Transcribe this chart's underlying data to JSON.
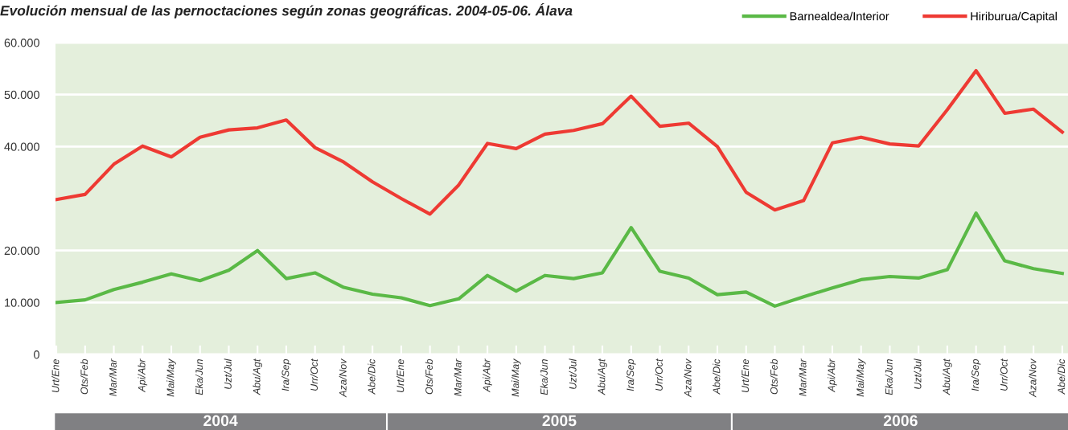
{
  "chart_data": {
    "type": "line",
    "title": "Evolución mensual de las pernoctaciones según zonas geográficas. 2004-05-06. Álava",
    "categories": [
      "Urt/Ene",
      "Ots/Feb",
      "Mar/Mar",
      "Api/Abr",
      "Mai/May",
      "Eka/Jun",
      "Uzt/Jul",
      "Abu/Agt",
      "Ira/Sep",
      "Urr/Oct",
      "Aza/Nov",
      "Abe/Dic",
      "Urt/Ene",
      "Ots/Feb",
      "Mar/Mar",
      "Api/Abr",
      "Mai/May",
      "Eka/Jun",
      "Uzt/Jul",
      "Abu/Agt",
      "Ira/Sep",
      "Urr/Oct",
      "Aza/Nov",
      "Abe/Dic",
      "Urt/Ene",
      "Ots/Feb",
      "Mar/Mar",
      "Api/Abr",
      "Mai/May",
      "Eka/Jun",
      "Uzt/Jul",
      "Abu/Agt",
      "Ira/Sep",
      "Urr/Oct",
      "Aza/Nov",
      "Abe/Dic"
    ],
    "series": [
      {
        "name": "Barnealdea/Interior",
        "color": "#5ab946",
        "values": [
          10000,
          10500,
          12500,
          13900,
          15500,
          14200,
          16200,
          20000,
          14600,
          15700,
          12900,
          11600,
          10900,
          9400,
          10700,
          15200,
          12200,
          15200,
          14600,
          15700,
          24400,
          16000,
          14700,
          11500,
          12000,
          9300,
          11100,
          12800,
          14400,
          15000,
          14700,
          16300,
          27200,
          18000,
          16500,
          15600
        ]
      },
      {
        "name": "Hiriburua/Capital",
        "color": "#ee3a33",
        "values": [
          29800,
          30800,
          36600,
          40100,
          38000,
          41800,
          43200,
          43600,
          45100,
          39800,
          37000,
          33200,
          30000,
          27000,
          32600,
          40600,
          39600,
          42400,
          43100,
          44400,
          49700,
          43900,
          44500,
          40000,
          31200,
          27800,
          29600,
          40700,
          41800,
          40500,
          40100,
          47100,
          54600,
          46400,
          47200,
          42800
        ]
      }
    ],
    "ylim": [
      0,
      60000
    ],
    "yticks": [
      0,
      {
        "value": 10000,
        "label": "10.000"
      },
      {
        "value": 20000,
        "label": "20.000"
      },
      {
        "value": 40000,
        "label": "40.000"
      },
      {
        "value": 50000,
        "label": "50.000"
      },
      {
        "value": 60000,
        "label": "60.000"
      }
    ],
    "grid": "y",
    "legend": "top right",
    "marker": "none",
    "line_style": "solid",
    "annotations": [
      "2004",
      "2005",
      "2006"
    ]
  }
}
